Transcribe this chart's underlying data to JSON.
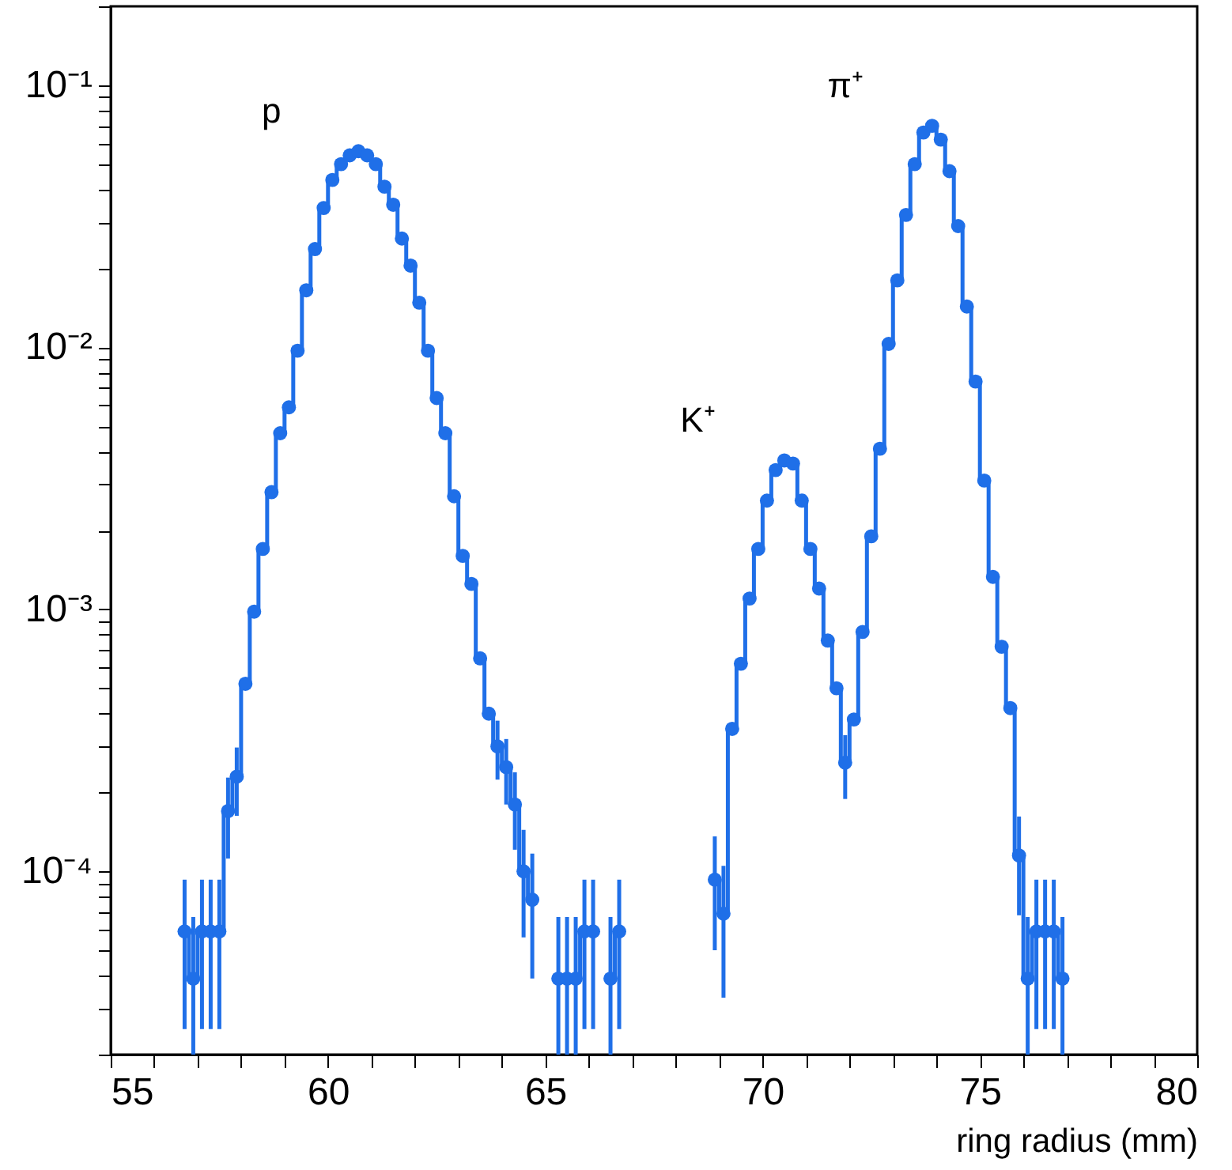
{
  "chart_data": {
    "type": "step",
    "xlabel": "ring radius (mm)",
    "color": "#1f6fe8",
    "marker": "circle",
    "x": [
      56.7,
      56.9,
      57.1,
      57.3,
      57.5,
      57.7,
      57.9,
      58.1,
      58.3,
      58.5,
      58.7,
      58.9,
      59.1,
      59.3,
      59.5,
      59.7,
      59.9,
      60.1,
      60.3,
      60.5,
      60.7,
      60.9,
      61.1,
      61.3,
      61.5,
      61.7,
      61.9,
      62.1,
      62.3,
      62.5,
      62.7,
      62.9,
      63.1,
      63.3,
      63.5,
      63.7,
      63.9,
      64.1,
      64.3,
      64.5,
      64.7,
      64.9,
      65.1,
      65.3,
      65.5,
      65.7,
      65.9,
      66.1,
      66.3,
      66.5,
      66.7,
      66.9,
      67.1,
      67.3,
      67.5,
      67.7,
      67.9,
      68.1,
      68.3,
      68.5,
      68.7,
      68.9,
      69.1,
      69.3,
      69.5,
      69.7,
      69.9,
      70.1,
      70.3,
      70.5,
      70.7,
      70.9,
      71.1,
      71.3,
      71.5,
      71.7,
      71.9,
      72.1,
      72.3,
      72.5,
      72.7,
      72.9,
      73.1,
      73.3,
      73.5,
      73.7,
      73.9,
      74.1,
      74.3,
      74.5,
      74.7,
      74.9,
      75.1,
      75.3,
      75.5,
      75.7,
      75.9,
      76.1,
      76.3,
      76.5,
      76.7,
      76.9
    ],
    "values": [
      5.9e-05,
      3.9e-05,
      5.9e-05,
      5.9e-05,
      5.9e-05,
      0.00017,
      0.00023,
      0.00052,
      0.00098,
      0.0017,
      0.0028,
      0.0047,
      0.0059,
      0.0097,
      0.0165,
      0.0237,
      0.034,
      0.0435,
      0.05,
      0.054,
      0.056,
      0.054,
      0.05,
      0.041,
      0.035,
      0.026,
      0.0205,
      0.0148,
      0.0097,
      0.0064,
      0.0047,
      0.0027,
      0.0016,
      0.00125,
      0.00065,
      0.0004,
      0.0003,
      0.00025,
      0.00018,
      0.0001,
      7.8e-05,
      null,
      null,
      3.9e-05,
      3.9e-05,
      3.9e-05,
      5.9e-05,
      5.9e-05,
      null,
      3.9e-05,
      5.9e-05,
      null,
      null,
      null,
      null,
      null,
      null,
      null,
      null,
      null,
      null,
      9.3e-05,
      6.9e-05,
      0.00035,
      0.00062,
      0.0011,
      0.0017,
      0.0026,
      0.0034,
      0.0037,
      0.0036,
      0.0026,
      0.0017,
      0.0012,
      0.00076,
      0.0005,
      0.00026,
      0.00038,
      0.00082,
      0.0019,
      0.0041,
      0.0103,
      0.018,
      0.032,
      0.05,
      0.066,
      0.07,
      0.062,
      0.047,
      0.029,
      0.0143,
      0.0074,
      0.0031,
      0.00133,
      0.00072,
      0.00042,
      0.000115,
      3.9e-05,
      5.9e-05,
      5.9e-05,
      5.9e-05,
      3.9e-05
    ],
    "errors": [
      [
        2.5e-05,
        9.3e-05
      ],
      [
        2e-05,
        6.7e-05
      ],
      [
        2.5e-05,
        9.3e-05
      ],
      [
        2.5e-05,
        9.3e-05
      ],
      [
        2.5e-05,
        9.3e-05
      ],
      [
        0.000112,
        0.000228
      ],
      [
        0.000163,
        0.000297
      ],
      null,
      null,
      null,
      null,
      null,
      null,
      null,
      null,
      null,
      null,
      null,
      null,
      null,
      null,
      null,
      null,
      null,
      null,
      null,
      null,
      null,
      null,
      null,
      null,
      null,
      null,
      null,
      null,
      null,
      [
        0.000224,
        0.000376
      ],
      [
        0.00018,
        0.00032
      ],
      [
        0.000121,
        0.000239
      ],
      [
        5.6e-05,
        0.000144
      ],
      [
        3.9e-05,
        0.000117
      ],
      null,
      null,
      [
        2e-05,
        6.7e-05
      ],
      [
        2e-05,
        6.7e-05
      ],
      [
        2e-05,
        6.7e-05
      ],
      [
        2.5e-05,
        9.3e-05
      ],
      [
        2.5e-05,
        9.3e-05
      ],
      null,
      [
        2e-05,
        6.7e-05
      ],
      [
        2.5e-05,
        9.3e-05
      ],
      null,
      null,
      null,
      null,
      null,
      null,
      null,
      null,
      null,
      null,
      [
        5e-05,
        0.000136
      ],
      [
        3.3e-05,
        0.000105
      ],
      null,
      null,
      null,
      null,
      null,
      null,
      null,
      null,
      null,
      null,
      null,
      null,
      null,
      [
        0.000189,
        0.000331
      ],
      null,
      null,
      null,
      null,
      null,
      null,
      null,
      null,
      null,
      null,
      null,
      null,
      null,
      null,
      null,
      null,
      null,
      null,
      null,
      [
        6.8e-05,
        0.000162
      ],
      [
        2e-05,
        6.7e-05
      ],
      [
        2.5e-05,
        9.3e-05
      ],
      [
        2.5e-05,
        9.3e-05
      ],
      [
        2.5e-05,
        9.3e-05
      ],
      [
        2e-05,
        6.7e-05
      ]
    ],
    "xlim": [
      55,
      80
    ],
    "ylim": [
      2e-05,
      0.2
    ],
    "log": true,
    "xticks": [
      55,
      {
        "value": 56,
        "label": null
      },
      {
        "value": 57,
        "label": null
      },
      {
        "value": 58,
        "label": null
      },
      {
        "value": 59,
        "label": null
      },
      60,
      {
        "value": 61,
        "label": null
      },
      {
        "value": 62,
        "label": null
      },
      {
        "value": 63,
        "label": null
      },
      {
        "value": 64,
        "label": null
      },
      65,
      {
        "value": 66,
        "label": null
      },
      {
        "value": 67,
        "label": null
      },
      {
        "value": 68,
        "label": null
      },
      {
        "value": 69,
        "label": null
      },
      70,
      {
        "value": 71,
        "label": null
      },
      {
        "value": 72,
        "label": null
      },
      {
        "value": 73,
        "label": null
      },
      {
        "value": 74,
        "label": null
      },
      75,
      {
        "value": 76,
        "label": null
      },
      {
        "value": 77,
        "label": null
      },
      {
        "value": 78,
        "label": null
      },
      {
        "value": 79,
        "label": null
      },
      80
    ],
    "yticks": [
      {
        "value": 2e-05,
        "label": null
      },
      {
        "value": 3e-05,
        "label": null
      },
      {
        "value": 4e-05,
        "label": null
      },
      {
        "value": 5e-05,
        "label": null
      },
      {
        "value": 6e-05,
        "label": null
      },
      {
        "value": 7e-05,
        "label": null
      },
      {
        "value": 8e-05,
        "label": null
      },
      {
        "value": 9e-05,
        "label": null
      },
      {
        "value": 0.0001,
        "label": "10⁻⁴"
      },
      {
        "value": 0.0002,
        "label": null
      },
      {
        "value": 0.0003,
        "label": null
      },
      {
        "value": 0.0004,
        "label": null
      },
      {
        "value": 0.0005,
        "label": null
      },
      {
        "value": 0.0006,
        "label": null
      },
      {
        "value": 0.0007,
        "label": null
      },
      {
        "value": 0.0008,
        "label": null
      },
      {
        "value": 0.0009,
        "label": null
      },
      {
        "value": 0.001,
        "label": "10⁻³"
      },
      {
        "value": 0.002,
        "label": null
      },
      {
        "value": 0.003,
        "label": null
      },
      {
        "value": 0.004,
        "label": null
      },
      {
        "value": 0.005,
        "label": null
      },
      {
        "value": 0.006,
        "label": null
      },
      {
        "value": 0.007,
        "label": null
      },
      {
        "value": 0.008,
        "label": null
      },
      {
        "value": 0.009,
        "label": null
      },
      {
        "value": 0.01,
        "label": "10⁻²"
      },
      {
        "value": 0.02,
        "label": null
      },
      {
        "value": 0.03,
        "label": null
      },
      {
        "value": 0.04,
        "label": null
      },
      {
        "value": 0.05,
        "label": null
      },
      {
        "value": 0.06,
        "label": null
      },
      {
        "value": 0.07,
        "label": null
      },
      {
        "value": 0.08,
        "label": null
      },
      {
        "value": 0.09,
        "label": null
      },
      {
        "value": 0.1,
        "label": "10⁻¹"
      },
      {
        "value": 0.2,
        "label": null
      }
    ],
    "annotations": [
      "p",
      "K⁺",
      "π⁺"
    ]
  }
}
